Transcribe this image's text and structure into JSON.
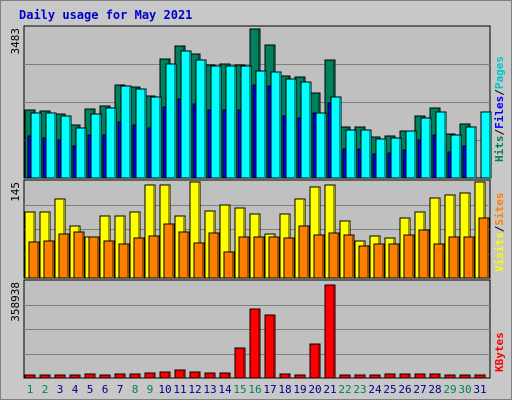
{
  "chart_data": {
    "type": "bar",
    "title": "Daily usage for May 2021",
    "categories": [
      "1",
      "2",
      "3",
      "4",
      "5",
      "6",
      "7",
      "8",
      "9",
      "10",
      "11",
      "12",
      "13",
      "14",
      "15",
      "16",
      "17",
      "18",
      "19",
      "20",
      "21",
      "22",
      "23",
      "24",
      "25",
      "26",
      "27",
      "28",
      "29",
      "30",
      "31"
    ],
    "weekend_days": [
      "1",
      "2",
      "8",
      "9",
      "15",
      "16",
      "22",
      "23",
      "29",
      "30"
    ],
    "panels": [
      {
        "id": "hits",
        "ymax_label": "3483",
        "ylim": [
          0,
          3483
        ],
        "series": [
          {
            "name": "Hits",
            "color": "#00805c",
            "values": [
              1590,
              1550,
              1480,
              1220,
              1610,
              1680,
              2170,
              2110,
              1910,
              2770,
              3060,
              2870,
              2620,
              2640,
              2630,
              3460,
              3080,
              2380,
              2340,
              1970,
              2740,
              1180,
              1180,
              960,
              980,
              1100,
              1430,
              1630,
              1020,
              1250,
              null
            ]
          },
          {
            "name": "Files",
            "color": "#0000ff",
            "values": [
              970,
              930,
              880,
              740,
              990,
              1010,
              1290,
              1240,
              1150,
              1660,
              1830,
              1720,
              1580,
              1580,
              1590,
              2160,
              2130,
              1440,
              1400,
              1520,
              1740,
              680,
              680,
              560,
              580,
              660,
              880,
              1000,
              610,
              750,
              null
            ]
          },
          {
            "name": "Pages",
            "color": "#00ffff",
            "values": [
              1520,
              1510,
              1440,
              1170,
              1480,
              1630,
              2130,
              2070,
              1880,
              2650,
              2960,
              2750,
              2590,
              2610,
              2610,
              2480,
              2460,
              2300,
              2220,
              1520,
              1880,
              1120,
              1120,
              900,
              920,
              1080,
              1400,
              1540,
              1000,
              1190,
              1540
            ]
          }
        ]
      },
      {
        "id": "visits",
        "ymax_label": "145",
        "ylim": [
          0,
          145
        ],
        "series": [
          {
            "name": "Visits",
            "color": "#ffff00",
            "values": [
              99,
              99,
              120,
              79,
              62,
              94,
              94,
              99,
              141,
              141,
              94,
              145,
              101,
              110,
              106,
              97,
              67,
              96,
              120,
              137,
              140,
              86,
              56,
              64,
              61,
              90,
              100,
              121,
              125,
              128,
              145
            ]
          },
          {
            "name": "Sites",
            "color": "#ff8000",
            "values": [
              55,
              56,
              66,
              69,
              62,
              56,
              51,
              61,
              63,
              82,
              70,
              53,
              68,
              39,
              62,
              62,
              62,
              60,
              79,
              65,
              68,
              65,
              49,
              52,
              51,
              65,
              72,
              51,
              62,
              62,
              90
            ]
          }
        ]
      },
      {
        "id": "kbytes",
        "ymax_label": "358938",
        "ylim": [
          0,
          358938
        ],
        "series": [
          {
            "name": "KBytes",
            "color": "#ff0000",
            "values": [
              10500,
              10500,
              12500,
              12500,
              16500,
              11000,
              16000,
              16000,
              18500,
              21000,
              31000,
              23000,
              20000,
              17000,
              113000,
              257000,
              237000,
              16000,
              11000,
              128000,
              349000,
              12000,
              12000,
              12000,
              14000,
              16000,
              14000,
              14000,
              12000,
              12000,
              12000
            ]
          }
        ]
      }
    ],
    "right_labels": [
      {
        "text": "Hits",
        "color": "#00805c"
      },
      {
        "text": "/",
        "color": "#000000"
      },
      {
        "text": "Files",
        "color": "#0000ff"
      },
      {
        "text": "/",
        "color": "#000000"
      },
      {
        "text": "Pages",
        "color": "#00c8c8"
      },
      {
        "text": "Visits",
        "color": "#ffff00"
      },
      {
        "text": "/",
        "color": "#000000"
      },
      {
        "text": "Sites",
        "color": "#ff8000"
      },
      {
        "text": "KBytes",
        "color": "#ff0000"
      }
    ],
    "weekday_color": "#00008b",
    "weekend_color": "#00805c",
    "grid": true
  }
}
